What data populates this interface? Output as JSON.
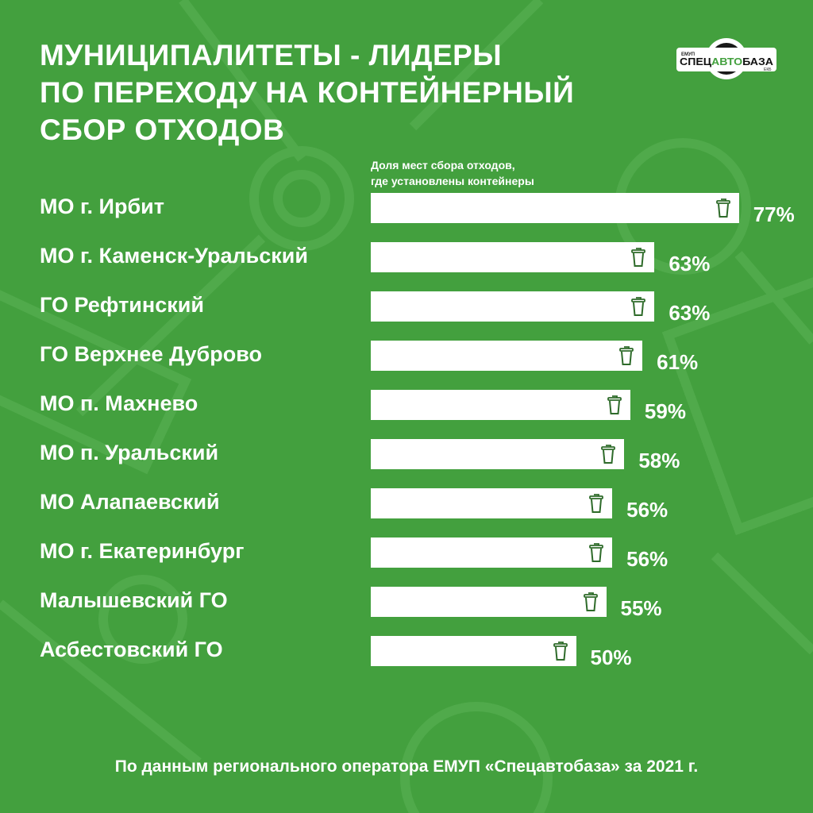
{
  "title": {
    "lines": [
      "МУНИЦИПАЛИТЕТЫ - ЛИДЕРЫ",
      "ПО ПЕРЕХОДУ НА КОНТЕЙНЕРНЫЙ",
      "СБОР ОТХОДОВ"
    ]
  },
  "logo": {
    "top": "ЕМУП",
    "name": "СПЕЦАВТОБАЗА",
    "suffix": "ЕКБ"
  },
  "colors": {
    "background": "#43a03e",
    "bar": "#ffffff",
    "icon": "#2e6b2a"
  },
  "chart_data": {
    "type": "bar",
    "orientation": "horizontal",
    "title": "МУНИЦИПАЛИТЕТЫ - ЛИДЕРЫ ПО ПЕРЕХОДУ НА КОНТЕЙНЕРНЫЙ СБОР ОТХОДОВ",
    "value_label": "Доля мест сбора отходов, где установлены контейнеры",
    "value_label_lines": [
      "Доля мест сбора отходов,",
      "где установлены контейнеры"
    ],
    "unit": "%",
    "categories": [
      "МО г. Ирбит",
      "МО г. Каменск-Уральский",
      "ГО Рефтинский",
      "ГО Верхнее Дуброво",
      "МО п. Махнево",
      "МО п. Уральский",
      "МО Алапаевский",
      "МО г. Екатеринбург",
      "Малышевский ГО",
      "Асбестовский ГО"
    ],
    "values": [
      77,
      63,
      63,
      61,
      59,
      58,
      56,
      56,
      55,
      50
    ],
    "data_labels": [
      "77%",
      "63%",
      "63%",
      "61%",
      "59%",
      "58%",
      "56%",
      "56%",
      "55%",
      "50%"
    ],
    "bar_icon": "trash-bin-icon"
  },
  "footer": "По данным регионального оператора ЕМУП «Спецавтобаза» за 2021 г."
}
